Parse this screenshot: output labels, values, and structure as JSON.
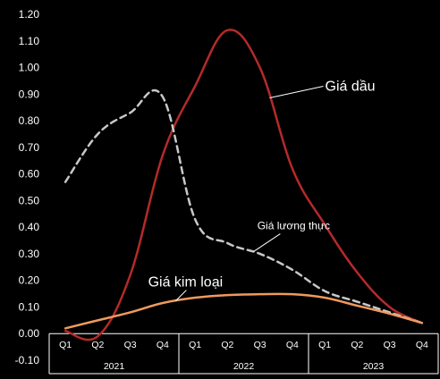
{
  "chart_data": {
    "type": "line",
    "title": "",
    "xlabel": "",
    "ylabel": "",
    "ylim": [
      -0.1,
      1.2
    ],
    "ytick_step": 0.1,
    "ytick_labels": [
      "-0.10",
      "0.00",
      "0.10",
      "0.20",
      "0.30",
      "0.40",
      "0.50",
      "0.60",
      "0.70",
      "0.80",
      "0.90",
      "1.00",
      "1.10",
      "1.20"
    ],
    "categories": [
      "Q1",
      "Q2",
      "Q3",
      "Q4",
      "Q1",
      "Q2",
      "Q3",
      "Q4",
      "Q1",
      "Q2",
      "Q3",
      "Q4"
    ],
    "years": [
      {
        "label": "2021",
        "start": 0,
        "end": 3
      },
      {
        "label": "2022",
        "start": 4,
        "end": 7
      },
      {
        "label": "2023",
        "start": 8,
        "end": 11
      }
    ],
    "grid": false,
    "legend": "none",
    "series": [
      {
        "name": "Giá dầu",
        "color": "#b52a2a",
        "style": "solid",
        "values": [
          0.01,
          -0.01,
          0.22,
          0.67,
          0.93,
          1.14,
          1.0,
          0.62,
          0.41,
          0.23,
          0.1,
          0.04
        ]
      },
      {
        "name": "Giá lương thực",
        "color": "#c8c8c8",
        "style": "dashed",
        "values": [
          0.57,
          0.75,
          0.83,
          0.89,
          0.43,
          0.34,
          0.3,
          0.24,
          0.16,
          0.12,
          0.08,
          0.04
        ]
      },
      {
        "name": "Giá kim loại",
        "color": "#ee9a5e",
        "style": "solid",
        "values": [
          0.02,
          0.05,
          0.08,
          0.115,
          0.135,
          0.145,
          0.148,
          0.148,
          0.135,
          0.105,
          0.075,
          0.04
        ]
      }
    ],
    "annotations": [
      {
        "series": 0,
        "label": "Giá dầu",
        "at_index": 6.3,
        "size": 16
      },
      {
        "series": 1,
        "label": "Giá lương thực",
        "at_index": 5.8,
        "size": 12
      },
      {
        "series": 2,
        "label": "Giá kim loại",
        "at_index": 3.4,
        "size": 16
      }
    ]
  }
}
